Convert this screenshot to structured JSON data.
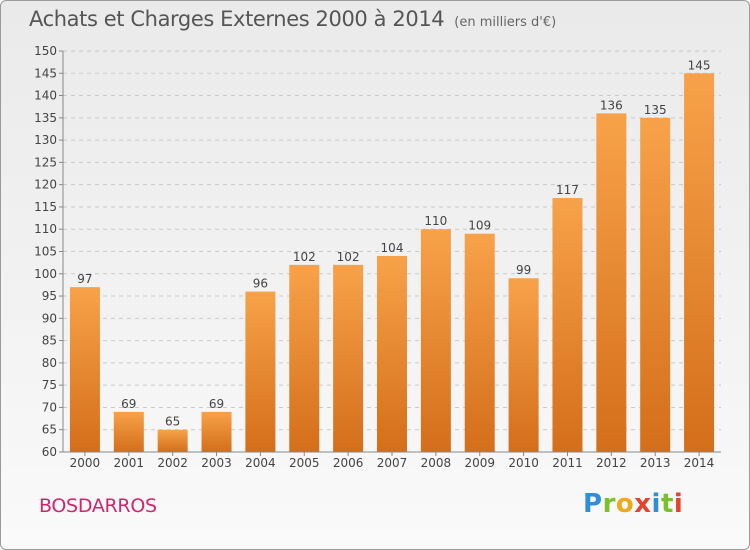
{
  "title": "Achats et Charges Externes 2000 à 2014",
  "subtitle": "(en milliers d'€)",
  "commune": "BOSDARROS",
  "logo": {
    "text": "Proxiti",
    "letters": [
      "P",
      "r",
      "o",
      "x",
      "i",
      "t",
      "i"
    ]
  },
  "colors": {
    "bar_light": "#f7a24a",
    "bar_dark": "#d46e1a",
    "title": "#555555",
    "commune": "#d3246c"
  },
  "chart_data": {
    "type": "bar",
    "categories": [
      "2000",
      "2001",
      "2002",
      "2003",
      "2004",
      "2005",
      "2006",
      "2007",
      "2008",
      "2009",
      "2010",
      "2011",
      "2012",
      "2013",
      "2014"
    ],
    "values": [
      97,
      69,
      65,
      69,
      96,
      102,
      102,
      104,
      110,
      109,
      99,
      117,
      136,
      135,
      145
    ],
    "ylim": [
      60,
      150
    ],
    "yticks": [
      60,
      65,
      70,
      75,
      80,
      85,
      90,
      95,
      100,
      105,
      110,
      115,
      120,
      125,
      130,
      135,
      140,
      145,
      150
    ],
    "grid": true,
    "data_labels": true
  }
}
